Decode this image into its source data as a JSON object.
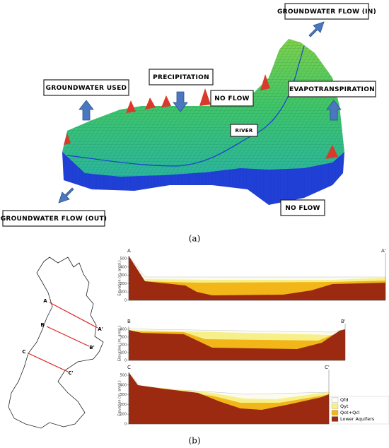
{
  "panel_a": {
    "caption": "(a)",
    "labels": {
      "groundwater_in": "GROUNDWATER FLOW (IN)",
      "groundwater_used": "GROUNDWATER USED",
      "precipitation": "PRECIPITATION",
      "no_flow_top": "NO FLOW",
      "evapotranspiration": "EVAPOTRANSPIRATION",
      "river": "RIVER",
      "no_flow_bottom": "NO FLOW",
      "groundwater_out": "GROUNDWATER FLOW (OUT)"
    }
  },
  "panel_b": {
    "caption": "(b)",
    "map_labels": [
      "A",
      "A'",
      "B",
      "B'",
      "C",
      "C'"
    ],
    "sections": [
      {
        "start": "A",
        "end": "A'",
        "y_label": "Elevation (m, amsl.)",
        "yticks": [
          0,
          100,
          200,
          300,
          400,
          500
        ]
      },
      {
        "start": "B",
        "end": "B'",
        "y_label": "Elevation (m, amsl.)",
        "yticks": [
          0,
          100,
          200,
          300,
          400
        ]
      },
      {
        "start": "C",
        "end": "C'",
        "y_label": "Elevation (m, amsl.)",
        "yticks": [
          0,
          100,
          200,
          300,
          400,
          500
        ]
      }
    ],
    "legend": [
      {
        "name": "Qfd",
        "color": "#fbfbf0"
      },
      {
        "name": "Qyt",
        "color": "#f7f08a"
      },
      {
        "name": "Qot+Qcl",
        "color": "#f2b619"
      },
      {
        "name": "Lower Aquifers",
        "color": "#9b2a10"
      }
    ]
  }
}
